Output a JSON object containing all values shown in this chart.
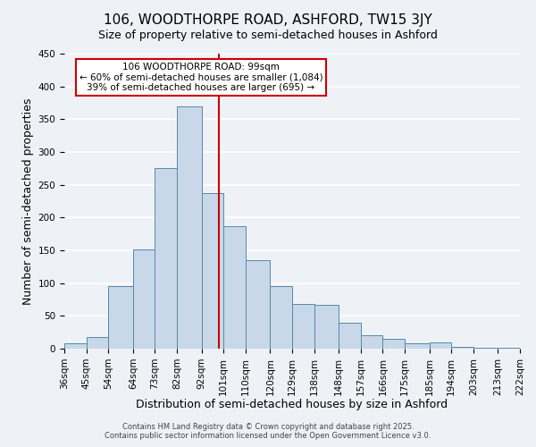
{
  "title": "106, WOODTHORPE ROAD, ASHFORD, TW15 3JY",
  "subtitle": "Size of property relative to semi-detached houses in Ashford",
  "xlabel": "Distribution of semi-detached houses by size in Ashford",
  "ylabel": "Number of semi-detached properties",
  "bin_labels": [
    "36sqm",
    "45sqm",
    "54sqm",
    "64sqm",
    "73sqm",
    "82sqm",
    "92sqm",
    "101sqm",
    "110sqm",
    "120sqm",
    "129sqm",
    "138sqm",
    "148sqm",
    "157sqm",
    "166sqm",
    "175sqm",
    "185sqm",
    "194sqm",
    "203sqm",
    "213sqm",
    "222sqm"
  ],
  "bar_values": [
    8,
    18,
    96,
    152,
    276,
    370,
    237,
    187,
    135,
    96,
    68,
    67,
    40,
    21,
    15,
    8,
    10,
    3,
    2,
    1
  ],
  "bin_edges": [
    36,
    45,
    54,
    64,
    73,
    82,
    92,
    101,
    110,
    120,
    129,
    138,
    148,
    157,
    166,
    175,
    185,
    194,
    203,
    213,
    222
  ],
  "bar_color": "#c8d8e8",
  "bar_edge_color": "#5588aa",
  "vline_x": 99,
  "vline_color": "#cc0000",
  "annotation_title": "106 WOODTHORPE ROAD: 99sqm",
  "annotation_line1": "← 60% of semi-detached houses are smaller (1,084)",
  "annotation_line2": "39% of semi-detached houses are larger (695) →",
  "annotation_box_color": "#ffffff",
  "annotation_box_edge": "#cc0000",
  "ylim": [
    0,
    450
  ],
  "yticks": [
    0,
    50,
    100,
    150,
    200,
    250,
    300,
    350,
    400,
    450
  ],
  "footer_line1": "Contains HM Land Registry data © Crown copyright and database right 2025.",
  "footer_line2": "Contains public sector information licensed under the Open Government Licence v3.0.",
  "background_color": "#eef2f7",
  "grid_color": "#ffffff",
  "title_fontsize": 11,
  "subtitle_fontsize": 9,
  "axis_label_fontsize": 9,
  "tick_fontsize": 7.5,
  "annotation_fontsize": 7.5,
  "footer_fontsize": 6
}
